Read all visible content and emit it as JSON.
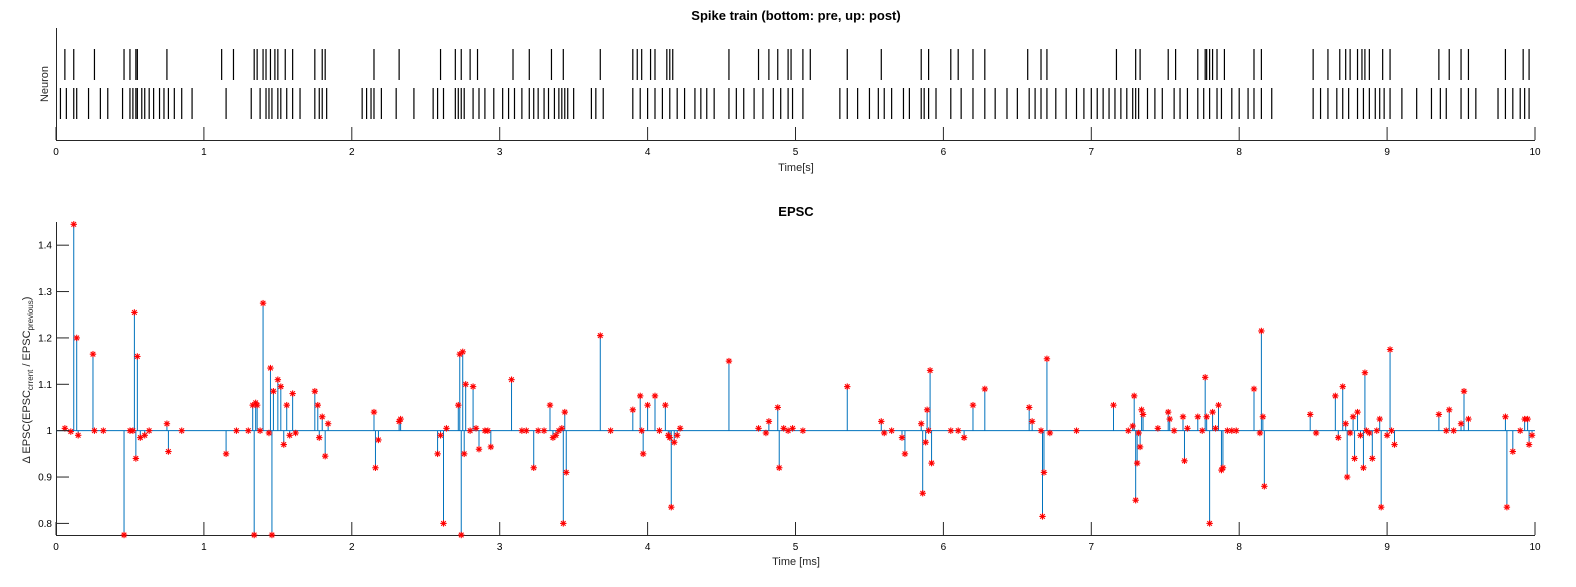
{
  "chart_data": [
    {
      "type": "raster",
      "title": "Spike train (bottom: pre, up: post)",
      "xlabel": "Time[s]",
      "ylabel": "Neuron",
      "xlim": [
        0,
        10
      ],
      "xticks": [
        0,
        1,
        2,
        3,
        4,
        5,
        6,
        7,
        8,
        9,
        10
      ],
      "grid": false,
      "color": "#000000",
      "series": [
        {
          "name": "post",
          "row": 2,
          "values": [
            0.06,
            0.12,
            0.26,
            0.46,
            0.5,
            0.54,
            0.55,
            0.75,
            1.12,
            1.2,
            1.34,
            1.36,
            1.4,
            1.42,
            1.45,
            1.48,
            1.5,
            1.55,
            1.6,
            1.75,
            1.8,
            1.82,
            2.15,
            2.32,
            2.6,
            2.7,
            2.74,
            2.8,
            2.85,
            3.09,
            3.2,
            3.35,
            3.43,
            3.68,
            3.9,
            3.93,
            3.96,
            4.02,
            4.05,
            4.13,
            4.15,
            4.17,
            4.55,
            4.75,
            4.82,
            4.88,
            4.95,
            4.97,
            5.05,
            5.1,
            5.35,
            5.58,
            5.85,
            5.9,
            6.05,
            6.1,
            6.2,
            6.28,
            6.57,
            6.66,
            6.7,
            7.17,
            7.3,
            7.33,
            7.52,
            7.57,
            7.72,
            7.77,
            7.78,
            7.8,
            7.82,
            7.85,
            7.9,
            8.1,
            8.15,
            8.5,
            8.6,
            8.68,
            8.72,
            8.75,
            8.8,
            8.83,
            8.85,
            8.88,
            8.97,
            9.02,
            9.35,
            9.42,
            9.5,
            9.55,
            9.8,
            9.92,
            9.96
          ]
        },
        {
          "name": "pre",
          "row": 1,
          "values": [
            0.03,
            0.07,
            0.12,
            0.14,
            0.22,
            0.3,
            0.35,
            0.45,
            0.5,
            0.52,
            0.54,
            0.55,
            0.58,
            0.6,
            0.63,
            0.66,
            0.7,
            0.73,
            0.76,
            0.8,
            0.85,
            0.92,
            1.15,
            1.32,
            1.38,
            1.42,
            1.44,
            1.46,
            1.5,
            1.52,
            1.56,
            1.6,
            1.65,
            1.75,
            1.78,
            1.8,
            1.83,
            2.07,
            2.1,
            2.13,
            2.15,
            2.2,
            2.3,
            2.42,
            2.55,
            2.58,
            2.62,
            2.7,
            2.72,
            2.74,
            2.76,
            2.82,
            2.86,
            2.9,
            2.96,
            3.02,
            3.06,
            3.1,
            3.15,
            3.2,
            3.23,
            3.26,
            3.3,
            3.33,
            3.37,
            3.4,
            3.42,
            3.44,
            3.46,
            3.5,
            3.62,
            3.65,
            3.7,
            3.9,
            3.95,
            4.0,
            4.05,
            4.1,
            4.15,
            4.2,
            4.25,
            4.32,
            4.36,
            4.4,
            4.45,
            4.55,
            4.6,
            4.65,
            4.72,
            4.78,
            4.85,
            4.9,
            4.95,
            4.98,
            5.05,
            5.3,
            5.35,
            5.42,
            5.5,
            5.56,
            5.6,
            5.65,
            5.73,
            5.77,
            5.85,
            5.87,
            5.9,
            5.95,
            6.05,
            6.12,
            6.2,
            6.28,
            6.35,
            6.43,
            6.5,
            6.58,
            6.62,
            6.66,
            6.7,
            6.76,
            6.83,
            6.9,
            6.95,
            7.0,
            7.04,
            7.08,
            7.12,
            7.16,
            7.2,
            7.24,
            7.28,
            7.3,
            7.32,
            7.38,
            7.43,
            7.48,
            7.56,
            7.6,
            7.65,
            7.72,
            7.76,
            7.8,
            7.85,
            7.88,
            7.95,
            8.0,
            8.06,
            8.1,
            8.15,
            8.22,
            8.5,
            8.55,
            8.6,
            8.66,
            8.7,
            8.74,
            8.8,
            8.84,
            8.88,
            8.92,
            8.95,
            8.98,
            9.02,
            9.1,
            9.2,
            9.3,
            9.36,
            9.4,
            9.5,
            9.55,
            9.6,
            9.75,
            9.8,
            9.85,
            9.9,
            9.93,
            9.96
          ]
        }
      ]
    },
    {
      "type": "stem",
      "title": "EPSC",
      "xlabel": "Time [ms]",
      "ylabel": "Δ EPSC(EPSC",
      "ylabel_sub1": "crrent",
      "ylabel_mid": " / EPSC",
      "ylabel_sub2": "previous",
      "ylabel_end": ")",
      "xlim": [
        0,
        10
      ],
      "ylim": [
        0.775,
        1.45
      ],
      "xticks": [
        0,
        1,
        2,
        3,
        4,
        5,
        6,
        7,
        8,
        9,
        10
      ],
      "yticks": [
        0.8,
        0.9,
        1,
        1.1,
        1.2,
        1.3,
        1.4
      ],
      "baseline": 1,
      "line_color": "#0072BD",
      "marker_color": "#ff0000",
      "grid": false,
      "points": [
        [
          0.06,
          1.005
        ],
        [
          0.1,
          0.998
        ],
        [
          0.12,
          1.445
        ],
        [
          0.14,
          1.2
        ],
        [
          0.15,
          0.99
        ],
        [
          0.25,
          1.165
        ],
        [
          0.26,
          1.0
        ],
        [
          0.32,
          1.0
        ],
        [
          0.46,
          0.775
        ],
        [
          0.5,
          1.0
        ],
        [
          0.52,
          1.0
        ],
        [
          0.53,
          1.255
        ],
        [
          0.54,
          0.94
        ],
        [
          0.55,
          1.16
        ],
        [
          0.57,
          0.985
        ],
        [
          0.6,
          0.99
        ],
        [
          0.63,
          1.0
        ],
        [
          0.75,
          1.015
        ],
        [
          0.76,
          0.955
        ],
        [
          0.85,
          1.0
        ],
        [
          1.15,
          0.95
        ],
        [
          1.22,
          1.0
        ],
        [
          1.3,
          1.0
        ],
        [
          1.33,
          1.055
        ],
        [
          1.34,
          0.775
        ],
        [
          1.35,
          1.06
        ],
        [
          1.36,
          1.055
        ],
        [
          1.38,
          1.0
        ],
        [
          1.4,
          1.275
        ],
        [
          1.44,
          0.995
        ],
        [
          1.45,
          1.135
        ],
        [
          1.46,
          0.775
        ],
        [
          1.47,
          1.085
        ],
        [
          1.5,
          1.11
        ],
        [
          1.52,
          1.095
        ],
        [
          1.54,
          0.97
        ],
        [
          1.56,
          1.055
        ],
        [
          1.58,
          0.99
        ],
        [
          1.6,
          1.08
        ],
        [
          1.62,
          0.995
        ],
        [
          1.75,
          1.085
        ],
        [
          1.77,
          1.055
        ],
        [
          1.78,
          0.985
        ],
        [
          1.8,
          1.03
        ],
        [
          1.82,
          0.945
        ],
        [
          1.84,
          1.015
        ],
        [
          2.15,
          1.04
        ],
        [
          2.16,
          0.92
        ],
        [
          2.18,
          0.98
        ],
        [
          2.32,
          1.02
        ],
        [
          2.33,
          1.025
        ],
        [
          2.58,
          0.95
        ],
        [
          2.6,
          0.99
        ],
        [
          2.62,
          0.8
        ],
        [
          2.64,
          1.005
        ],
        [
          2.72,
          1.055
        ],
        [
          2.73,
          1.165
        ],
        [
          2.74,
          0.775
        ],
        [
          2.75,
          1.17
        ],
        [
          2.76,
          0.95
        ],
        [
          2.77,
          1.1
        ],
        [
          2.8,
          1.0
        ],
        [
          2.82,
          1.095
        ],
        [
          2.84,
          1.005
        ],
        [
          2.86,
          0.96
        ],
        [
          2.9,
          1.0
        ],
        [
          2.92,
          1.0
        ],
        [
          2.94,
          0.965
        ],
        [
          3.08,
          1.11
        ],
        [
          3.15,
          1.0
        ],
        [
          3.18,
          1.0
        ],
        [
          3.23,
          0.92
        ],
        [
          3.26,
          1.0
        ],
        [
          3.3,
          1.0
        ],
        [
          3.34,
          1.055
        ],
        [
          3.36,
          0.985
        ],
        [
          3.38,
          0.99
        ],
        [
          3.4,
          1.0
        ],
        [
          3.42,
          1.005
        ],
        [
          3.43,
          0.8
        ],
        [
          3.44,
          1.04
        ],
        [
          3.45,
          0.91
        ],
        [
          3.68,
          1.205
        ],
        [
          3.75,
          1.0
        ],
        [
          3.9,
          1.045
        ],
        [
          3.95,
          1.075
        ],
        [
          3.96,
          1.0
        ],
        [
          3.97,
          0.95
        ],
        [
          4.0,
          1.055
        ],
        [
          4.05,
          1.075
        ],
        [
          4.08,
          1.0
        ],
        [
          4.12,
          1.055
        ],
        [
          4.14,
          0.99
        ],
        [
          4.15,
          0.985
        ],
        [
          4.16,
          0.835
        ],
        [
          4.18,
          0.975
        ],
        [
          4.2,
          0.99
        ],
        [
          4.22,
          1.005
        ],
        [
          4.55,
          1.15
        ],
        [
          4.75,
          1.005
        ],
        [
          4.8,
          0.995
        ],
        [
          4.82,
          1.02
        ],
        [
          4.88,
          1.05
        ],
        [
          4.89,
          0.92
        ],
        [
          4.92,
          1.005
        ],
        [
          4.95,
          1.0
        ],
        [
          4.98,
          1.005
        ],
        [
          5.05,
          1.0
        ],
        [
          5.35,
          1.095
        ],
        [
          5.58,
          1.02
        ],
        [
          5.6,
          0.995
        ],
        [
          5.65,
          1.0
        ],
        [
          5.72,
          0.985
        ],
        [
          5.74,
          0.95
        ],
        [
          5.85,
          1.015
        ],
        [
          5.86,
          0.865
        ],
        [
          5.88,
          0.975
        ],
        [
          5.89,
          1.045
        ],
        [
          5.9,
          1.0
        ],
        [
          5.91,
          1.13
        ],
        [
          5.92,
          0.93
        ],
        [
          6.05,
          1.0
        ],
        [
          6.1,
          1.0
        ],
        [
          6.14,
          0.985
        ],
        [
          6.2,
          1.055
        ],
        [
          6.28,
          1.09
        ],
        [
          6.58,
          1.05
        ],
        [
          6.6,
          1.02
        ],
        [
          6.66,
          1.0
        ],
        [
          6.67,
          0.815
        ],
        [
          6.68,
          0.91
        ],
        [
          6.7,
          1.155
        ],
        [
          6.72,
          0.995
        ],
        [
          6.9,
          1.0
        ],
        [
          7.15,
          1.055
        ],
        [
          7.25,
          1.0
        ],
        [
          7.28,
          1.01
        ],
        [
          7.29,
          1.075
        ],
        [
          7.3,
          0.85
        ],
        [
          7.31,
          0.93
        ],
        [
          7.32,
          0.995
        ],
        [
          7.33,
          0.965
        ],
        [
          7.34,
          1.045
        ],
        [
          7.35,
          1.035
        ],
        [
          7.45,
          1.005
        ],
        [
          7.52,
          1.04
        ],
        [
          7.53,
          1.025
        ],
        [
          7.56,
          1.0
        ],
        [
          7.62,
          1.03
        ],
        [
          7.63,
          0.935
        ],
        [
          7.65,
          1.005
        ],
        [
          7.72,
          1.03
        ],
        [
          7.75,
          1.0
        ],
        [
          7.77,
          1.115
        ],
        [
          7.78,
          1.03
        ],
        [
          7.8,
          0.8
        ],
        [
          7.82,
          1.04
        ],
        [
          7.84,
          1.005
        ],
        [
          7.86,
          1.055
        ],
        [
          7.88,
          0.915
        ],
        [
          7.89,
          0.92
        ],
        [
          7.92,
          1.0
        ],
        [
          7.95,
          1.0
        ],
        [
          7.98,
          1.0
        ],
        [
          8.1,
          1.09
        ],
        [
          8.14,
          0.995
        ],
        [
          8.15,
          1.215
        ],
        [
          8.16,
          1.03
        ],
        [
          8.17,
          0.88
        ],
        [
          8.48,
          1.035
        ],
        [
          8.52,
          0.995
        ],
        [
          8.65,
          1.075
        ],
        [
          8.67,
          0.985
        ],
        [
          8.7,
          1.095
        ],
        [
          8.72,
          1.015
        ],
        [
          8.73,
          0.9
        ],
        [
          8.75,
          0.995
        ],
        [
          8.77,
          1.03
        ],
        [
          8.78,
          0.94
        ],
        [
          8.8,
          1.04
        ],
        [
          8.82,
          0.99
        ],
        [
          8.84,
          0.92
        ],
        [
          8.85,
          1.125
        ],
        [
          8.86,
          1.0
        ],
        [
          8.88,
          0.995
        ],
        [
          8.9,
          0.94
        ],
        [
          8.93,
          1.0
        ],
        [
          8.95,
          1.025
        ],
        [
          8.96,
          0.835
        ],
        [
          9.0,
          0.99
        ],
        [
          9.02,
          1.175
        ],
        [
          9.03,
          1.0
        ],
        [
          9.05,
          0.97
        ],
        [
          9.35,
          1.035
        ],
        [
          9.4,
          1.0
        ],
        [
          9.42,
          1.045
        ],
        [
          9.45,
          1.0
        ],
        [
          9.5,
          1.015
        ],
        [
          9.52,
          1.085
        ],
        [
          9.55,
          1.025
        ],
        [
          9.8,
          1.03
        ],
        [
          9.81,
          0.835
        ],
        [
          9.85,
          0.955
        ],
        [
          9.9,
          1.0
        ],
        [
          9.93,
          1.025
        ],
        [
          9.95,
          1.025
        ],
        [
          9.96,
          0.97
        ],
        [
          9.98,
          0.99
        ]
      ]
    }
  ]
}
